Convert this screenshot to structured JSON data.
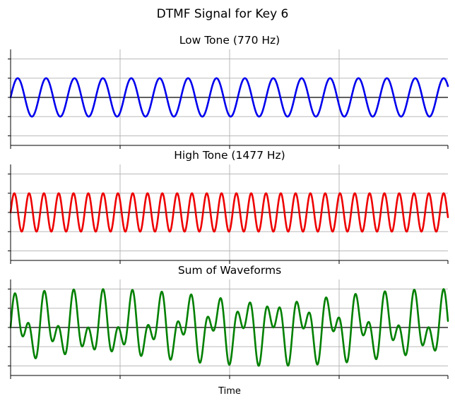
{
  "chart_data": {
    "title": "DTMF Signal for Key 6",
    "xlabel": "Time",
    "panels": [
      {
        "type": "line",
        "title": "Low Tone (770 Hz)",
        "color": "#0000ee",
        "series": [
          {
            "frequency_hz": 770,
            "amplitude": 1
          }
        ],
        "grid": true,
        "zero_line": true
      },
      {
        "type": "line",
        "title": "High Tone (1477 Hz)",
        "color": "#ee0000",
        "series": [
          {
            "frequency_hz": 1477,
            "amplitude": 1
          }
        ],
        "grid": true,
        "zero_line": true
      },
      {
        "type": "line",
        "title": "Sum of Waveforms",
        "color": "#008000",
        "series": [
          {
            "frequency_hz": 770,
            "amplitude": 1
          },
          {
            "frequency_hz": 1477,
            "amplitude": 1
          }
        ],
        "grid": true,
        "zero_line": true
      }
    ],
    "x_range_s": [
      0,
      0.02
    ],
    "ylim": [
      -2.5,
      2.5
    ],
    "x_tick_labels_shown": false,
    "y_tick_labels_shown": false
  }
}
